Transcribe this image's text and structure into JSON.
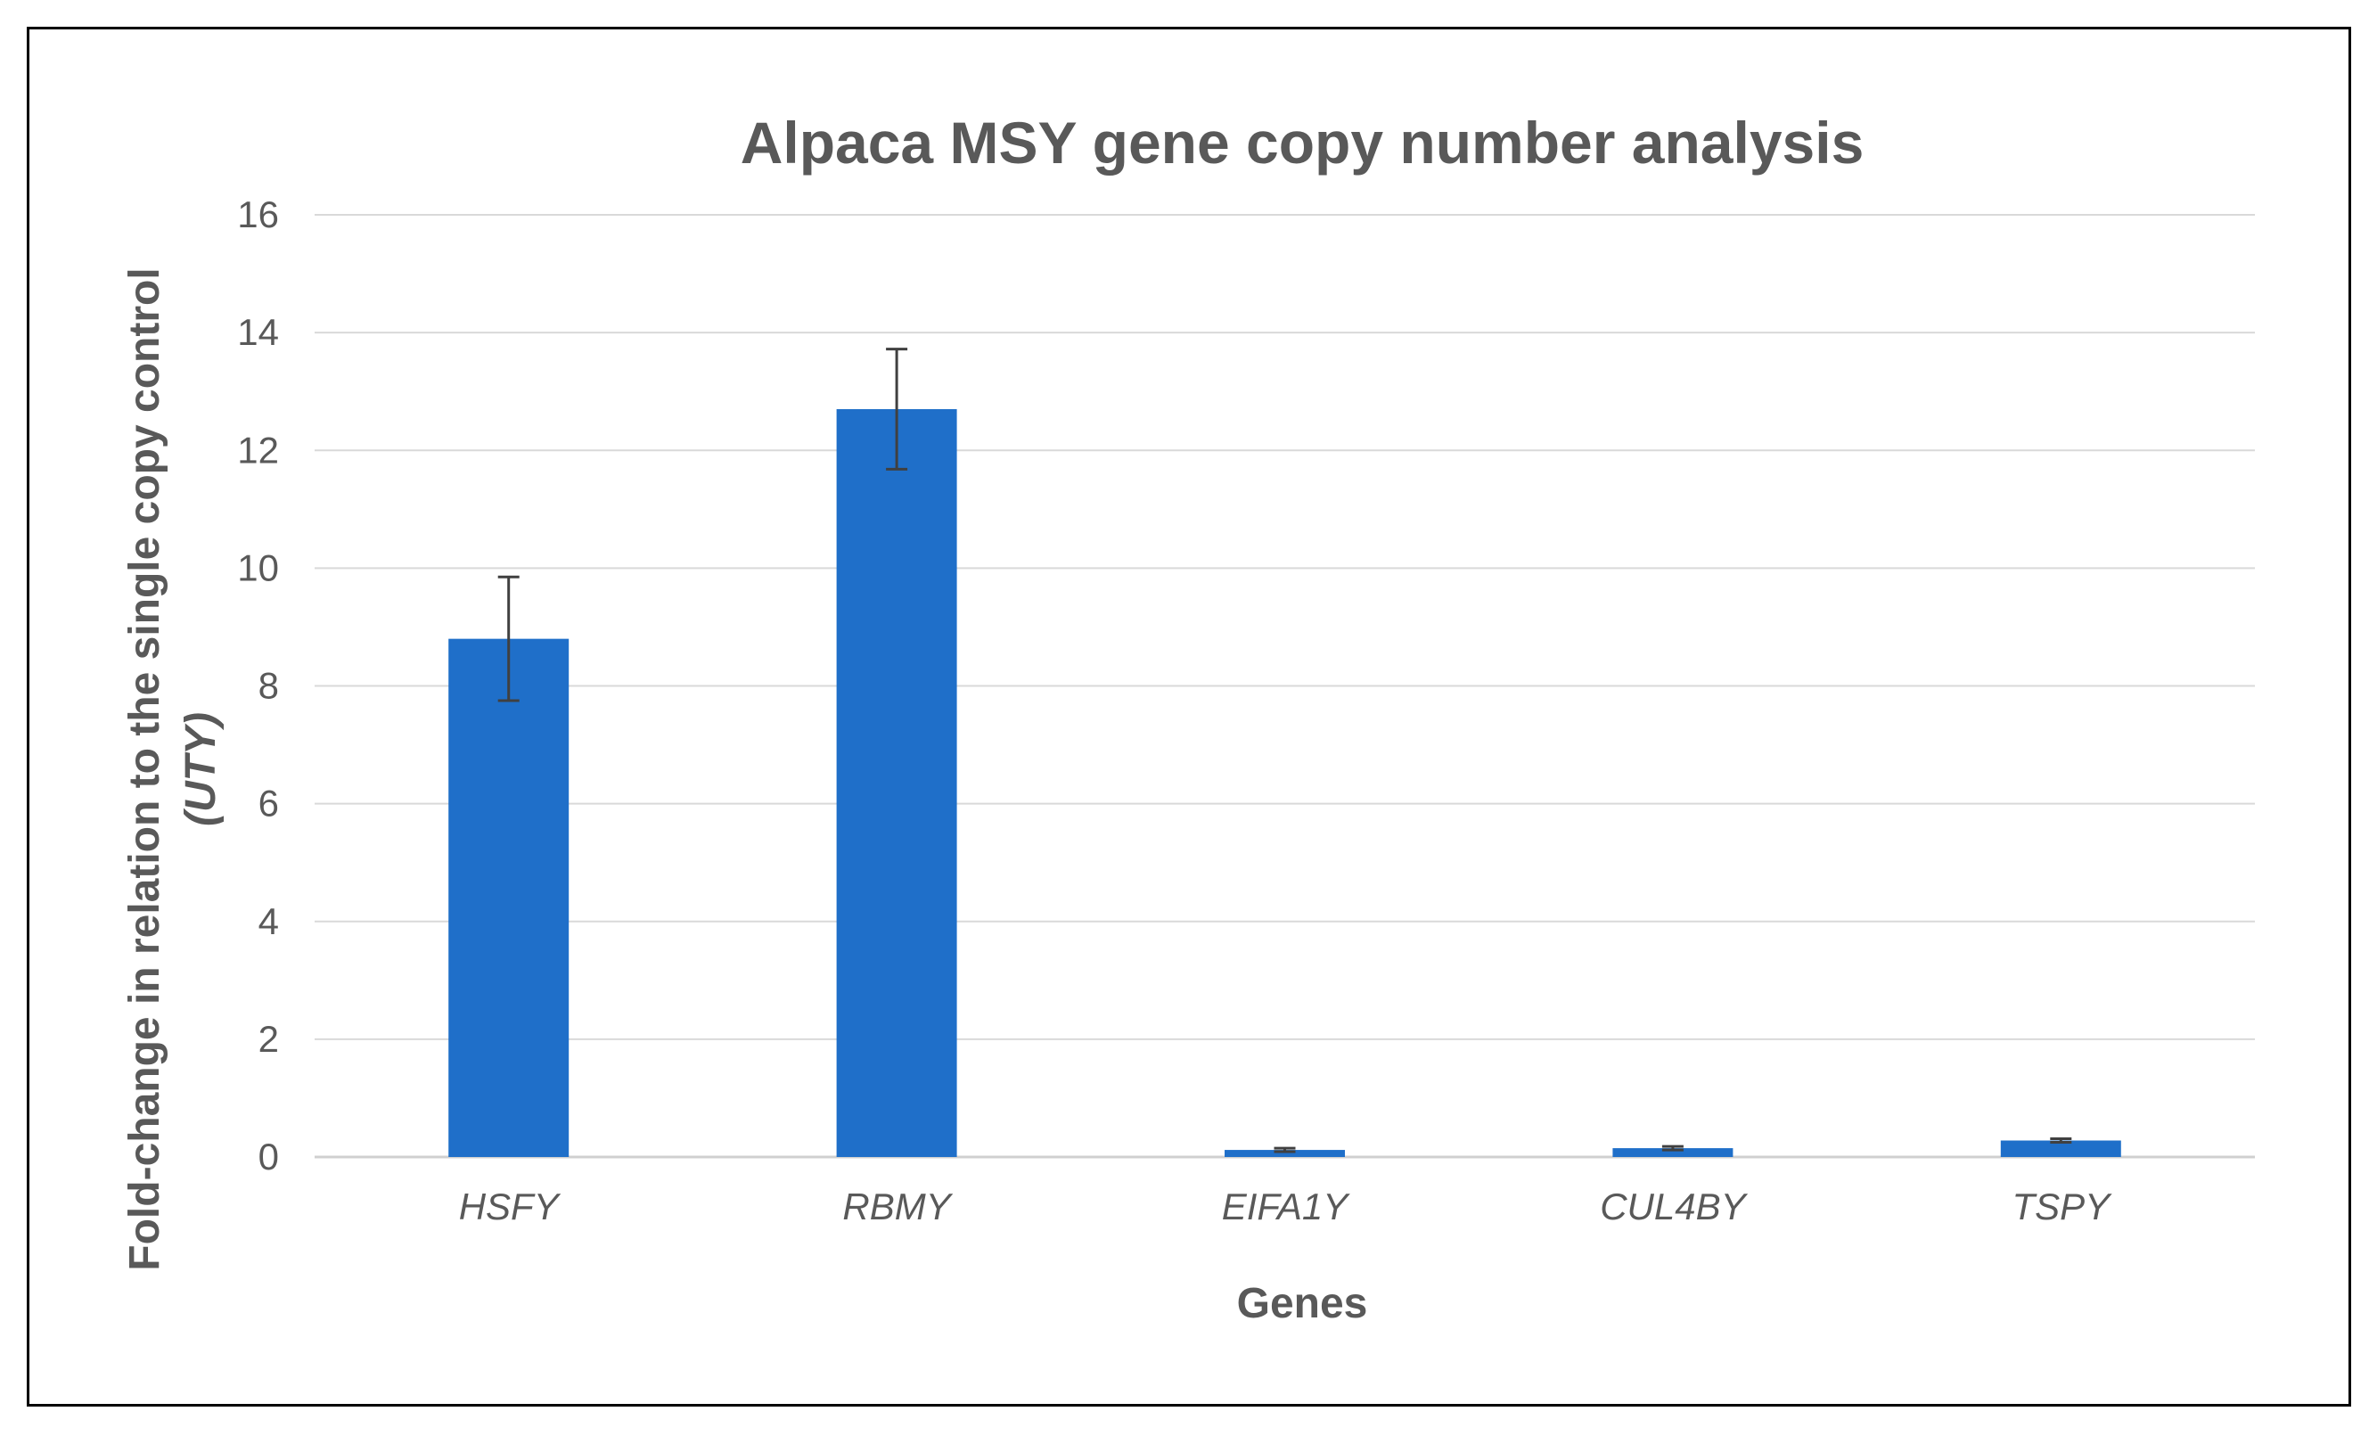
{
  "chart_data": {
    "type": "bar",
    "title": "Alpaca MSY gene copy number analysis",
    "xlabel": "Genes",
    "ylabel_line1": "Fold-change in relation to the single copy control",
    "ylabel_line2": "(UTY)",
    "categories": [
      "HSFY",
      "RBMY",
      "EIFA1Y",
      "CUL4BY",
      "TSPY"
    ],
    "values": [
      8.8,
      12.7,
      0.12,
      0.15,
      0.28
    ],
    "errors": [
      1.05,
      1.02,
      0.03,
      0.03,
      0.03
    ],
    "ylim": [
      0,
      16
    ],
    "yticks": [
      "0",
      "2",
      "4",
      "6",
      "8",
      "10",
      "12",
      "14",
      "16"
    ],
    "grid": true,
    "legend": "none",
    "bar_color": "#1F6FC9"
  }
}
